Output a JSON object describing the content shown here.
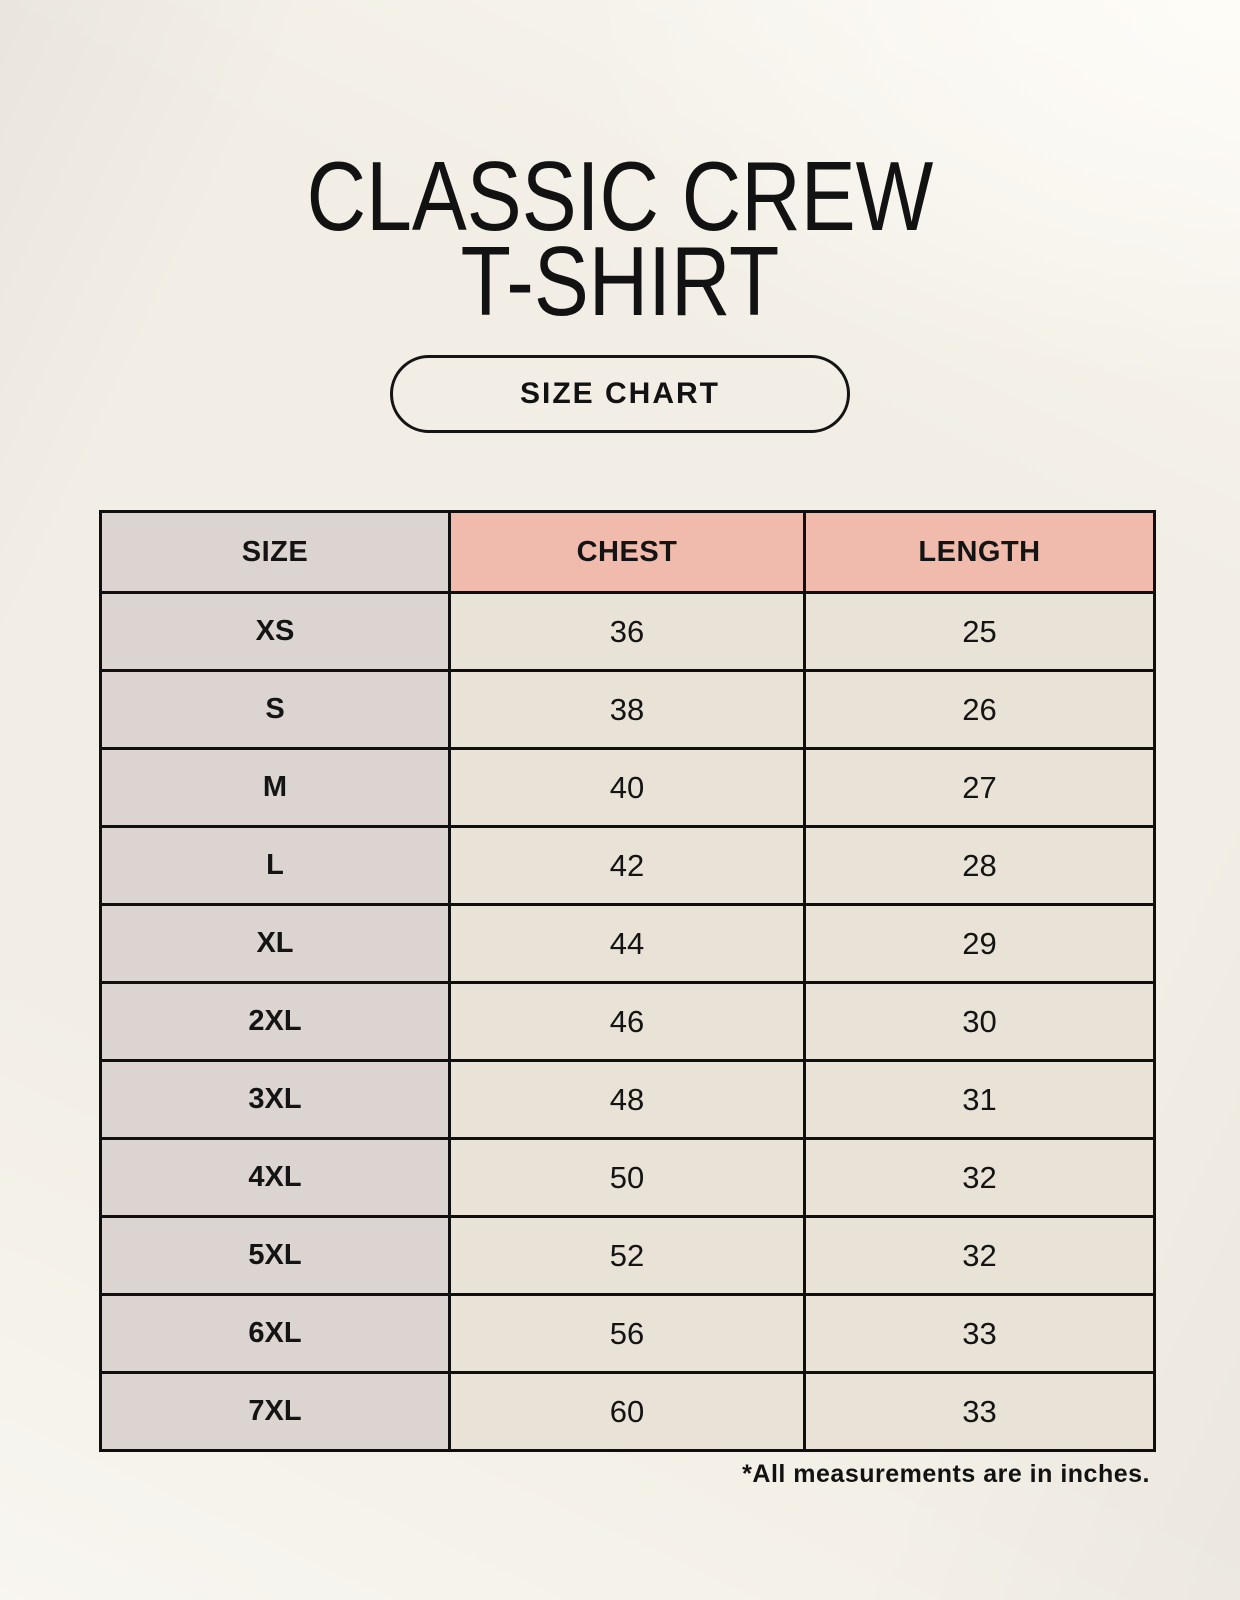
{
  "page": {
    "title_line1": "CLASSIC CREW",
    "title_line2": "T-SHIRT",
    "size_chart_button_label": "SIZE CHART",
    "footnote": "*All measurements are in inches."
  },
  "table": {
    "columns": [
      "SIZE",
      "CHEST",
      "LENGTH"
    ],
    "rows": [
      {
        "size": "XS",
        "chest": "36",
        "length": "25"
      },
      {
        "size": "S",
        "chest": "38",
        "length": "26"
      },
      {
        "size": "M",
        "chest": "40",
        "length": "27"
      },
      {
        "size": "L",
        "chest": "42",
        "length": "28"
      },
      {
        "size": "XL",
        "chest": "44",
        "length": "29"
      },
      {
        "size": "2XL",
        "chest": "46",
        "length": "30"
      },
      {
        "size": "3XL",
        "chest": "48",
        "length": "31"
      },
      {
        "size": "4XL",
        "chest": "50",
        "length": "32"
      },
      {
        "size": "5XL",
        "chest": "52",
        "length": "32"
      },
      {
        "size": "6XL",
        "chest": "56",
        "length": "33"
      },
      {
        "size": "7XL",
        "chest": "60",
        "length": "33"
      }
    ]
  },
  "chart_data": {
    "type": "table",
    "title": "CLASSIC CREW T-SHIRT",
    "subtitle": "SIZE CHART",
    "columns": [
      "SIZE",
      "CHEST",
      "LENGTH"
    ],
    "rows": [
      [
        "XS",
        36,
        25
      ],
      [
        "S",
        38,
        26
      ],
      [
        "M",
        40,
        27
      ],
      [
        "L",
        42,
        28
      ],
      [
        "XL",
        44,
        29
      ],
      [
        "2XL",
        46,
        30
      ],
      [
        "3XL",
        48,
        31
      ],
      [
        "4XL",
        50,
        32
      ],
      [
        "5XL",
        52,
        32
      ],
      [
        "6XL",
        56,
        33
      ],
      [
        "7XL",
        60,
        33
      ]
    ],
    "note": "*All measurements are in inches.",
    "units": "inches"
  },
  "colors": {
    "page-bg": "#f2eee5",
    "header-pink": "#f0bbac",
    "size-col-gray": "#dbd4d0",
    "cell-cream": "#e9e2d6",
    "border-black": "#0f0f0f",
    "text-color": "#141414"
  }
}
